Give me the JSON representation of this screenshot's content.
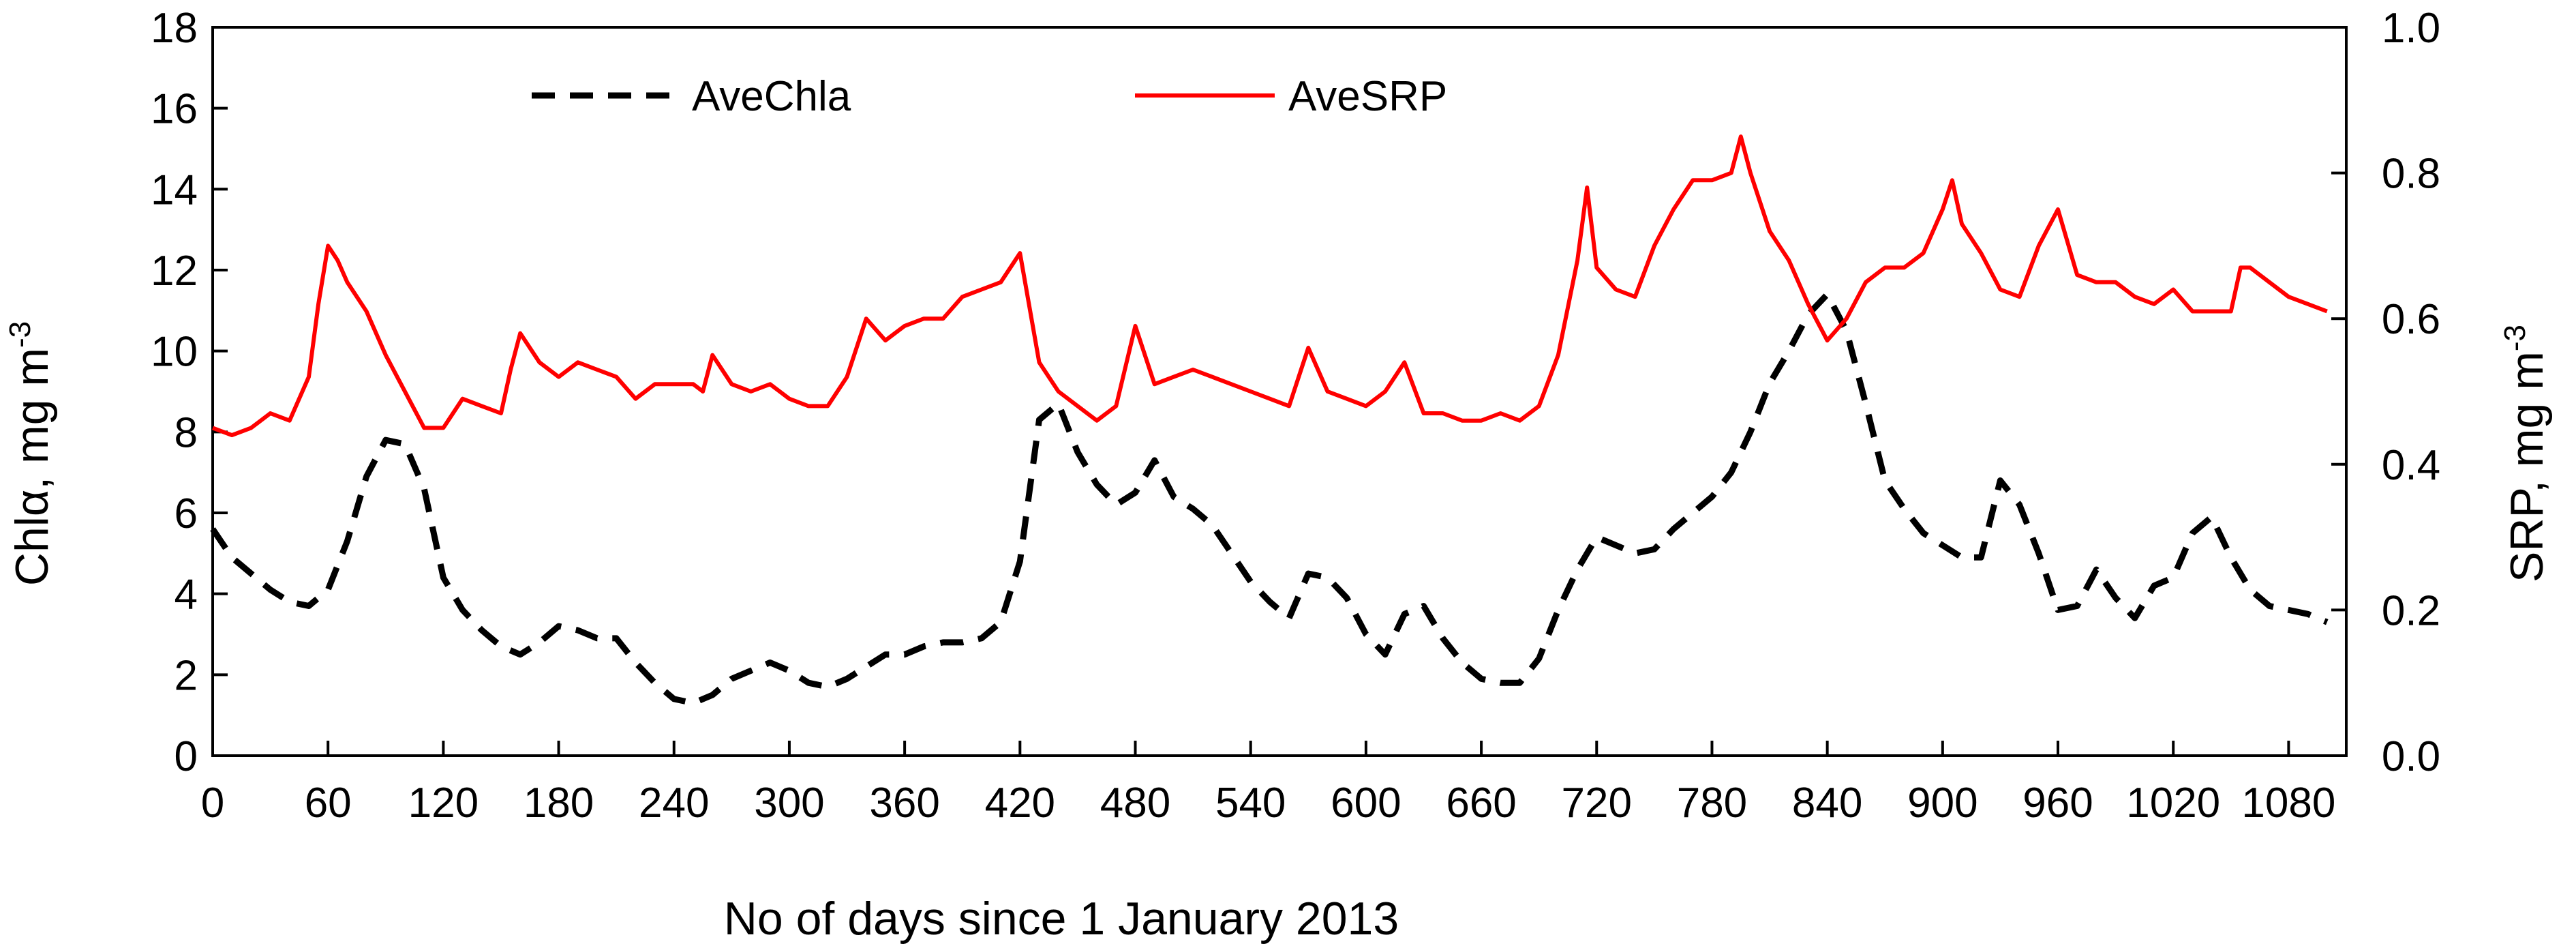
{
  "chart_data": {
    "type": "line",
    "title": "",
    "xlabel": "No of days since 1 January 2013",
    "ylabel_left": "Chlα, mg m⁻³",
    "ylabel_left_base": "Chlα, mg m",
    "ylabel_left_sup": "-3",
    "ylabel_right_base": "SRP, mg m",
    "ylabel_right_sup": "-3",
    "xlim": [
      0,
      1110
    ],
    "ylim_left": [
      0,
      18
    ],
    "ylim_right": [
      0,
      1.0
    ],
    "x_ticks": [
      0,
      60,
      120,
      180,
      240,
      300,
      360,
      420,
      480,
      540,
      600,
      660,
      720,
      780,
      840,
      900,
      960,
      1020,
      1080
    ],
    "x_tick_labels": [
      "0",
      "60",
      "120",
      "180",
      "240",
      "300",
      "360",
      "420",
      "480",
      "540",
      "600",
      "660",
      "720",
      "780",
      "840",
      "900",
      "960",
      "1020",
      "1080"
    ],
    "y_left_ticks": [
      0,
      2,
      4,
      6,
      8,
      10,
      12,
      14,
      16,
      18
    ],
    "y_left_tick_labels": [
      "0",
      "2",
      "4",
      "6",
      "8",
      "10",
      "12",
      "14",
      "16",
      "18"
    ],
    "y_right_ticks": [
      0,
      0.2,
      0.4,
      0.6,
      0.8,
      1.0
    ],
    "y_right_tick_labels": [
      "0.0",
      "0.2",
      "0.4",
      "0.6",
      "0.8",
      "1.0"
    ],
    "legend_position": "top-left",
    "series": [
      {
        "name": "AveChla",
        "axis": "left",
        "color": "#000000",
        "style": "dashed",
        "x": [
          0,
          10,
          20,
          30,
          40,
          50,
          60,
          70,
          80,
          90,
          100,
          110,
          120,
          130,
          140,
          150,
          160,
          170,
          180,
          190,
          200,
          210,
          220,
          230,
          240,
          250,
          260,
          270,
          280,
          290,
          300,
          310,
          320,
          330,
          340,
          350,
          360,
          370,
          380,
          390,
          400,
          410,
          420,
          430,
          440,
          450,
          460,
          470,
          480,
          490,
          500,
          510,
          520,
          530,
          540,
          550,
          560,
          570,
          580,
          590,
          600,
          610,
          620,
          630,
          640,
          650,
          660,
          670,
          680,
          690,
          700,
          710,
          720,
          730,
          740,
          750,
          760,
          770,
          780,
          790,
          800,
          810,
          820,
          830,
          840,
          850,
          860,
          870,
          880,
          890,
          900,
          910,
          920,
          930,
          940,
          950,
          960,
          970,
          980,
          990,
          1000,
          1010,
          1020,
          1030,
          1040,
          1050,
          1060,
          1070,
          1080,
          1090,
          1100
        ],
        "values": [
          5.6,
          4.9,
          4.5,
          4.1,
          3.8,
          3.7,
          4.1,
          5.3,
          6.9,
          7.8,
          7.7,
          6.6,
          4.4,
          3.6,
          3.1,
          2.7,
          2.5,
          2.8,
          3.2,
          3.1,
          2.9,
          2.9,
          2.3,
          1.8,
          1.4,
          1.3,
          1.5,
          1.9,
          2.1,
          2.3,
          2.1,
          1.8,
          1.7,
          1.9,
          2.2,
          2.5,
          2.5,
          2.7,
          2.8,
          2.8,
          2.9,
          3.3,
          4.8,
          8.3,
          8.7,
          7.5,
          6.7,
          6.2,
          6.5,
          7.3,
          6.4,
          6.1,
          5.7,
          5.0,
          4.3,
          3.8,
          3.4,
          4.5,
          4.4,
          3.9,
          3.0,
          2.5,
          3.5,
          3.7,
          2.9,
          2.3,
          1.9,
          1.8,
          1.8,
          2.4,
          3.6,
          4.6,
          5.4,
          5.2,
          5.0,
          5.1,
          5.6,
          6.0,
          6.4,
          7.0,
          8.0,
          9.2,
          10.0,
          10.9,
          11.4,
          10.5,
          8.7,
          6.8,
          6.1,
          5.5,
          5.2,
          4.9,
          4.9,
          6.8,
          6.2,
          5.0,
          3.6,
          3.7,
          4.6,
          3.9,
          3.4,
          4.2,
          4.4,
          5.5,
          5.9,
          4.9,
          4.1,
          3.7,
          3.6,
          3.5,
          3.3
        ]
      },
      {
        "name": "AveSRP",
        "axis": "right",
        "color": "#ff0000",
        "style": "solid",
        "x": [
          0,
          10,
          20,
          30,
          40,
          50,
          55,
          60,
          65,
          70,
          80,
          90,
          100,
          110,
          120,
          130,
          140,
          150,
          155,
          160,
          170,
          180,
          190,
          200,
          210,
          220,
          230,
          240,
          250,
          255,
          260,
          270,
          280,
          290,
          300,
          310,
          320,
          330,
          340,
          350,
          360,
          370,
          380,
          390,
          400,
          410,
          420,
          430,
          440,
          450,
          460,
          470,
          480,
          490,
          500,
          510,
          520,
          530,
          540,
          550,
          560,
          570,
          580,
          590,
          600,
          610,
          620,
          630,
          640,
          650,
          660,
          670,
          680,
          690,
          700,
          710,
          715,
          720,
          730,
          740,
          750,
          760,
          770,
          780,
          790,
          795,
          800,
          810,
          820,
          830,
          840,
          850,
          860,
          870,
          880,
          890,
          900,
          905,
          910,
          920,
          930,
          940,
          950,
          960,
          970,
          980,
          990,
          1000,
          1010,
          1020,
          1030,
          1040,
          1050,
          1055,
          1060,
          1070,
          1080,
          1090,
          1100
        ],
        "values": [
          0.45,
          0.44,
          0.45,
          0.47,
          0.46,
          0.52,
          0.62,
          0.7,
          0.68,
          0.65,
          0.61,
          0.55,
          0.5,
          0.45,
          0.45,
          0.49,
          0.48,
          0.47,
          0.53,
          0.58,
          0.54,
          0.52,
          0.54,
          0.53,
          0.52,
          0.49,
          0.51,
          0.51,
          0.51,
          0.5,
          0.55,
          0.51,
          0.5,
          0.51,
          0.49,
          0.48,
          0.48,
          0.52,
          0.6,
          0.57,
          0.59,
          0.6,
          0.6,
          0.63,
          0.64,
          0.65,
          0.69,
          0.54,
          0.5,
          0.48,
          0.46,
          0.48,
          0.59,
          0.51,
          0.52,
          0.53,
          0.52,
          0.51,
          0.5,
          0.49,
          0.48,
          0.56,
          0.5,
          0.49,
          0.48,
          0.5,
          0.54,
          0.47,
          0.47,
          0.46,
          0.46,
          0.47,
          0.46,
          0.48,
          0.55,
          0.68,
          0.78,
          0.67,
          0.64,
          0.63,
          0.7,
          0.75,
          0.79,
          0.79,
          0.8,
          0.85,
          0.8,
          0.72,
          0.68,
          0.62,
          0.57,
          0.6,
          0.65,
          0.67,
          0.67,
          0.69,
          0.75,
          0.79,
          0.73,
          0.69,
          0.64,
          0.63,
          0.7,
          0.75,
          0.66,
          0.65,
          0.65,
          0.63,
          0.62,
          0.64,
          0.61,
          0.61,
          0.61,
          0.67,
          0.67,
          0.65,
          0.63,
          0.62,
          0.61
        ]
      }
    ]
  }
}
